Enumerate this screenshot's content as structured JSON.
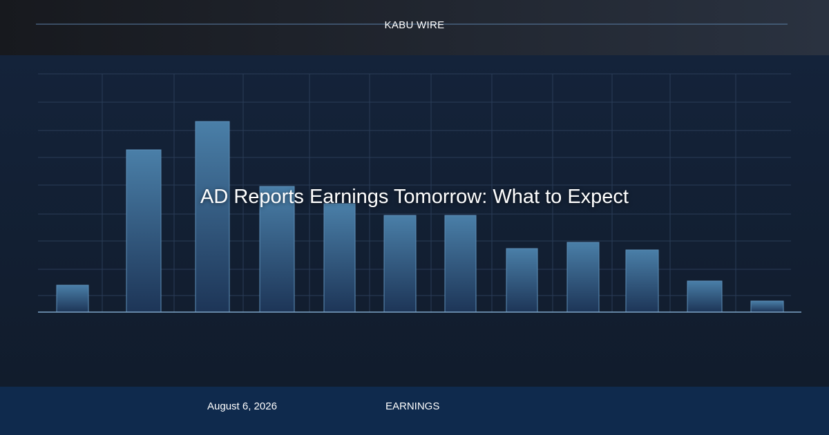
{
  "header": {
    "brand": "KABU WIRE"
  },
  "article": {
    "title": "AD Reports Earnings Tomorrow: What to Expect",
    "date": "August 6, 2026",
    "category": "EARNINGS"
  }
}
